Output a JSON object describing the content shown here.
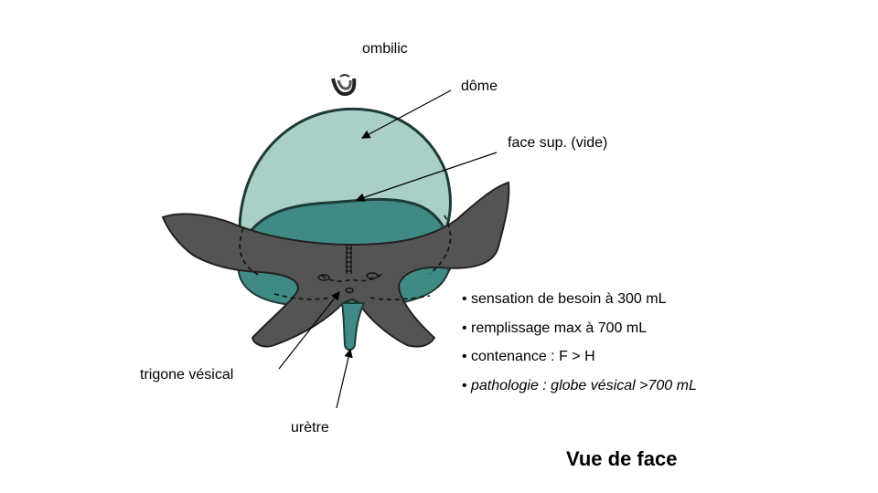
{
  "labels": {
    "ombilic": "ombilic",
    "dome": "dôme",
    "face_sup": "face sup. (vide)",
    "trigone": "trigone vésical",
    "uretre": "urètre"
  },
  "bullets": [
    {
      "bullet": "•",
      "text": "sensation de besoin à 300 mL",
      "italic": false
    },
    {
      "bullet": "•",
      "text": "remplissage max à 700 mL",
      "italic": false
    },
    {
      "bullet": "•",
      "text": "contenance : F > H",
      "italic": false
    },
    {
      "bullet": "•",
      "text": "pathologie : globe vésical >700 mL",
      "italic": true
    }
  ],
  "title": "Vue de face",
  "colors": {
    "bladder_light": "#a9cfc6",
    "bladder_dark": "#3f8a84",
    "muscle": "#545454",
    "outline": "#1e3b38"
  }
}
